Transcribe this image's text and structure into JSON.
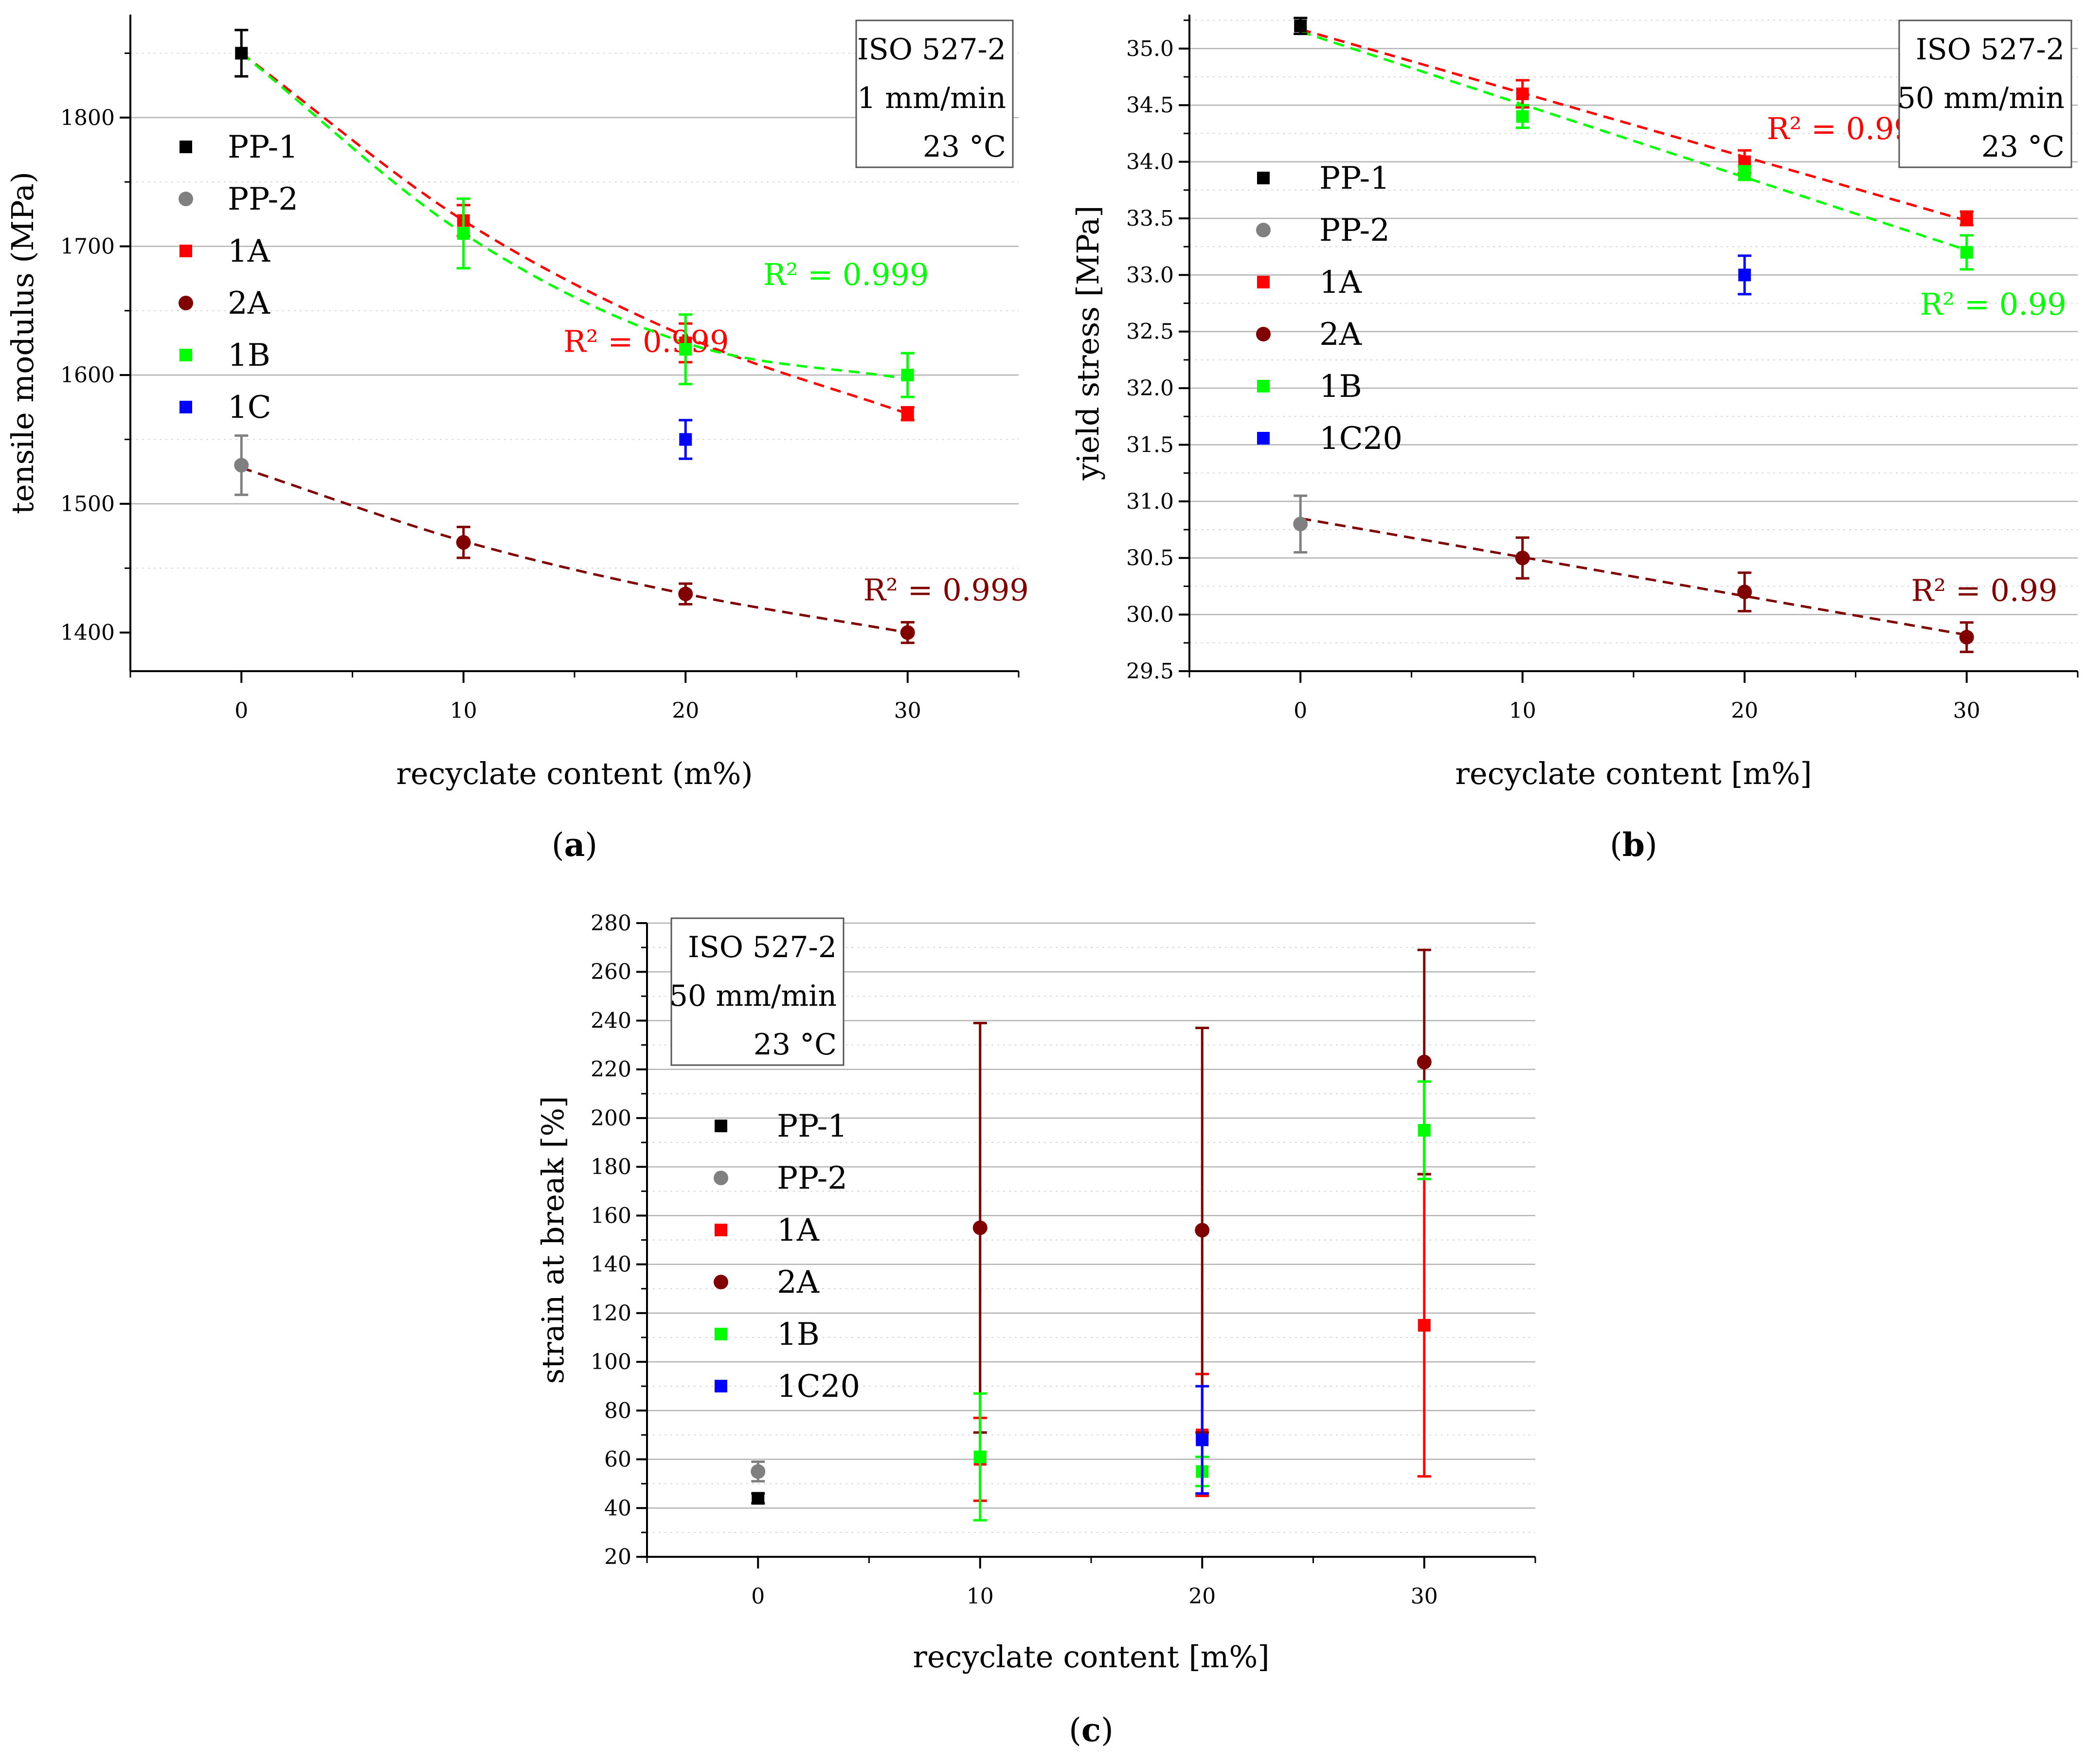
{
  "chart_data": [
    {
      "id": "a",
      "type": "scatter",
      "caption": "(a)",
      "xlabel": "recyclate content (m%)",
      "ylabel": "tensile modulus (MPa)",
      "xlim": [
        -5,
        35
      ],
      "ylim": [
        1370,
        1880
      ],
      "xticks": [
        0,
        10,
        20,
        30
      ],
      "yticks": [
        1400,
        1500,
        1600,
        1700,
        1800
      ],
      "grid": true,
      "legend_position": "left",
      "info_box": [
        "ISO 527-2",
        "1 mm/min",
        "23 °C"
      ],
      "series": [
        {
          "name": "PP-1",
          "color": "#000000",
          "marker": "square",
          "x": [
            0
          ],
          "y": [
            1850
          ],
          "err": [
            18
          ]
        },
        {
          "name": "PP-2",
          "color": "#808080",
          "marker": "circle",
          "x": [
            0
          ],
          "y": [
            1530
          ],
          "err": [
            23
          ]
        },
        {
          "name": "1A",
          "color": "#ff0000",
          "marker": "square",
          "x": [
            10,
            20,
            30
          ],
          "y": [
            1720,
            1625,
            1570
          ],
          "err": [
            12,
            15,
            5
          ]
        },
        {
          "name": "2A",
          "color": "#800000",
          "marker": "circle",
          "x": [
            10,
            20,
            30
          ],
          "y": [
            1470,
            1430,
            1400
          ],
          "err": [
            12,
            8,
            8
          ]
        },
        {
          "name": "1B",
          "color": "#00ff00",
          "marker": "square",
          "x": [
            10,
            20,
            30
          ],
          "y": [
            1710,
            1620,
            1600
          ],
          "err": [
            27,
            27,
            17
          ]
        },
        {
          "name": "1C",
          "color": "#0000ff",
          "marker": "square",
          "x": [
            20
          ],
          "y": [
            1550
          ],
          "err": [
            15
          ]
        }
      ],
      "fits": [
        {
          "color": "#ff0000",
          "x": [
            0,
            10,
            20,
            30
          ],
          "y": [
            1850,
            1720,
            1630,
            1570
          ],
          "r2_text": "R² = 0.999",
          "r2_at": [
            14.5,
            1618
          ]
        },
        {
          "color": "#00ff00",
          "x": [
            0,
            10,
            20,
            30
          ],
          "y": [
            1850,
            1710,
            1625,
            1597
          ],
          "r2_text": "R² = 0.999",
          "r2_at": [
            23.5,
            1670
          ]
        },
        {
          "color": "#800000",
          "x": [
            0,
            10,
            20,
            30
          ],
          "y": [
            1528,
            1471,
            1430,
            1400
          ],
          "r2_text": "R² = 0.999",
          "r2_at": [
            28,
            1425
          ]
        }
      ]
    },
    {
      "id": "b",
      "type": "scatter",
      "caption": "(b)",
      "xlabel": "recyclate content [m%]",
      "ylabel": "yield stress [MPa]",
      "xlim": [
        -5,
        35
      ],
      "ylim": [
        29.5,
        35.3
      ],
      "xticks": [
        0,
        10,
        20,
        30
      ],
      "yticks": [
        29.5,
        30.0,
        30.5,
        31.0,
        31.5,
        32.0,
        32.5,
        33.0,
        33.5,
        34.0,
        34.5,
        35.0
      ],
      "ytick_labels": [
        "29.5",
        "30.0",
        "30.5",
        "31.0",
        "31.5",
        "32.0",
        "32.5",
        "33.0",
        "33.5",
        "34.0",
        "34.5",
        "35.0"
      ],
      "grid": true,
      "legend_position": "left",
      "info_box": [
        "ISO 527-2",
        "50 mm/min",
        "23 °C"
      ],
      "series": [
        {
          "name": "PP-1",
          "color": "#000000",
          "marker": "square",
          "x": [
            0
          ],
          "y": [
            35.2
          ],
          "err": [
            0.07
          ]
        },
        {
          "name": "PP-2",
          "color": "#808080",
          "marker": "circle",
          "x": [
            0
          ],
          "y": [
            30.8
          ],
          "err": [
            0.25
          ]
        },
        {
          "name": "1A",
          "color": "#ff0000",
          "marker": "square",
          "x": [
            10,
            20,
            30
          ],
          "y": [
            34.6,
            34.0,
            33.5
          ],
          "err": [
            0.12,
            0.1,
            0.06
          ]
        },
        {
          "name": "2A",
          "color": "#800000",
          "marker": "circle",
          "x": [
            10,
            20,
            30
          ],
          "y": [
            30.5,
            30.2,
            29.8
          ],
          "err": [
            0.18,
            0.17,
            0.13
          ]
        },
        {
          "name": "1B",
          "color": "#00ff00",
          "marker": "square",
          "x": [
            10,
            20,
            30
          ],
          "y": [
            34.4,
            33.9,
            33.2
          ],
          "err": [
            0.1,
            0.06,
            0.15
          ]
        },
        {
          "name": "1C20",
          "color": "#0000ff",
          "marker": "square",
          "x": [
            20
          ],
          "y": [
            33.0
          ],
          "err": [
            0.17
          ]
        }
      ],
      "fits": [
        {
          "color": "#ff0000",
          "x": [
            0,
            30
          ],
          "y": [
            35.17,
            33.48
          ],
          "r2_text": "R² = 0.99",
          "r2_at": [
            21,
            34.2
          ]
        },
        {
          "color": "#00ff00",
          "x": [
            0,
            30
          ],
          "y": [
            35.15,
            33.22
          ],
          "r2_text": "R² = 0.99",
          "r2_at": [
            27.9,
            32.65
          ]
        },
        {
          "color": "#800000",
          "x": [
            0,
            30
          ],
          "y": [
            30.85,
            29.82
          ],
          "r2_text": "R² = 0.99",
          "r2_at": [
            27.5,
            30.12
          ]
        }
      ]
    },
    {
      "id": "c",
      "type": "scatter",
      "caption": "(c)",
      "xlabel": "recyclate content [m%]",
      "ylabel": "strain at break [%]",
      "xlim": [
        -5,
        35
      ],
      "ylim": [
        20,
        280
      ],
      "xticks": [
        0,
        10,
        20,
        30
      ],
      "yticks": [
        20,
        40,
        60,
        80,
        100,
        120,
        140,
        160,
        180,
        200,
        220,
        240,
        260,
        280
      ],
      "grid": true,
      "legend_position": "left",
      "info_box": [
        "ISO 527-2",
        "50 mm/min",
        "23 °C"
      ],
      "series": [
        {
          "name": "PP-1",
          "color": "#000000",
          "marker": "square",
          "x": [
            0
          ],
          "y": [
            44
          ],
          "err": [
            2
          ]
        },
        {
          "name": "PP-2",
          "color": "#808080",
          "marker": "circle",
          "x": [
            0
          ],
          "y": [
            55
          ],
          "err": [
            4
          ]
        },
        {
          "name": "1A",
          "color": "#ff0000",
          "marker": "square",
          "x": [
            10,
            20,
            30
          ],
          "y": [
            60,
            70,
            115
          ],
          "err": [
            17,
            25,
            62
          ]
        },
        {
          "name": "2A",
          "color": "#800000",
          "marker": "circle",
          "x": [
            10,
            20,
            30
          ],
          "y": [
            155,
            154,
            223
          ],
          "err": [
            84,
            83,
            46
          ]
        },
        {
          "name": "1B",
          "color": "#00ff00",
          "marker": "square",
          "x": [
            10,
            20,
            30
          ],
          "y": [
            61,
            55,
            195
          ],
          "err": [
            26,
            6,
            20
          ]
        },
        {
          "name": "1C20",
          "color": "#0000ff",
          "marker": "square",
          "x": [
            20
          ],
          "y": [
            68
          ],
          "err": [
            22
          ]
        }
      ],
      "fits": []
    }
  ]
}
